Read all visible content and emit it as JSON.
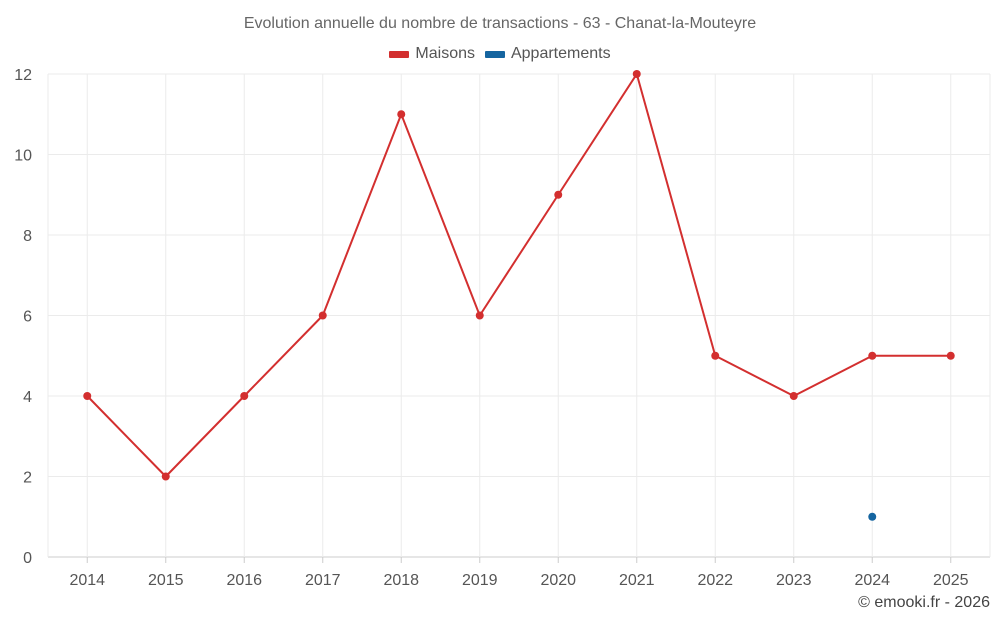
{
  "colors": {
    "maisons": "#d32f2f",
    "appartements": "#1565a0"
  },
  "credit": "© emooki.fr - 2026",
  "chart_data": {
    "type": "line",
    "title": "Evolution annuelle du nombre de transactions - 63 - Chanat-la-Mouteyre",
    "xlabel": "",
    "ylabel": "",
    "categories": [
      "2014",
      "2015",
      "2016",
      "2017",
      "2018",
      "2019",
      "2020",
      "2021",
      "2022",
      "2023",
      "2024",
      "2025"
    ],
    "y_ticks": [
      "0",
      "2",
      "4",
      "6",
      "8",
      "10",
      "12"
    ],
    "ylim": [
      0,
      12
    ],
    "grid": true,
    "legend_position": "top-center",
    "series": [
      {
        "name": "Maisons",
        "color_key": "maisons",
        "values": [
          4,
          2,
          4,
          6,
          11,
          6,
          9,
          12,
          5,
          4,
          5,
          5
        ]
      },
      {
        "name": "Appartements",
        "color_key": "appartements",
        "values": [
          null,
          null,
          null,
          null,
          null,
          null,
          null,
          null,
          null,
          null,
          1,
          null
        ]
      }
    ]
  }
}
